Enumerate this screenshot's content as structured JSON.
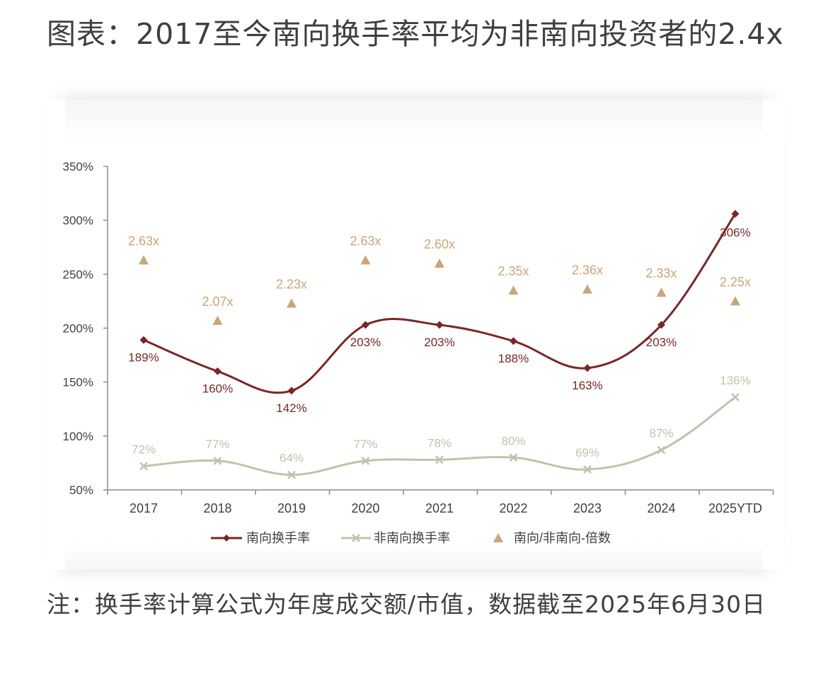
{
  "title": "图表：2017至今南向换手率平均为非南向投资者的2.4x",
  "note": "注：换手率计算公式为年度成交额/市值，数据截至2025年6月30日",
  "colors": {
    "southbound": "#7b2627",
    "non_southbound": "#c2c2ad",
    "ratio": "#c9a57a",
    "axis": "#8c8c8c",
    "text": "#3f3f3f"
  },
  "chart_data": {
    "type": "line",
    "categories": [
      "2017",
      "2018",
      "2019",
      "2020",
      "2021",
      "2022",
      "2023",
      "2024",
      "2025YTD"
    ],
    "ylim": [
      50,
      350
    ],
    "yticks": [
      "50%",
      "100%",
      "150%",
      "200%",
      "250%",
      "300%",
      "350%"
    ],
    "grid": false,
    "legend_position": "bottom",
    "series": [
      {
        "name": "南向换手率",
        "marker": "diamond",
        "values": [
          189,
          160,
          142,
          203,
          203,
          188,
          163,
          203,
          306
        ],
        "labels": [
          "189%",
          "160%",
          "142%",
          "203%",
          "203%",
          "188%",
          "163%",
          "203%",
          "306%"
        ]
      },
      {
        "name": "非南向换手率",
        "marker": "x",
        "values": [
          72,
          77,
          64,
          77,
          78,
          80,
          69,
          87,
          136
        ],
        "labels": [
          "72%",
          "77%",
          "64%",
          "77%",
          "78%",
          "80%",
          "69%",
          "87%",
          "136%"
        ]
      },
      {
        "name": "南向/非南向-倍数",
        "marker": "triangle",
        "values": [
          2.63,
          2.07,
          2.23,
          2.63,
          2.6,
          2.35,
          2.36,
          2.33,
          2.25
        ],
        "labels": [
          "2.63x",
          "2.07x",
          "2.23x",
          "2.63x",
          "2.60x",
          "2.35x",
          "2.36x",
          "2.33x",
          "2.25x"
        ]
      }
    ]
  }
}
